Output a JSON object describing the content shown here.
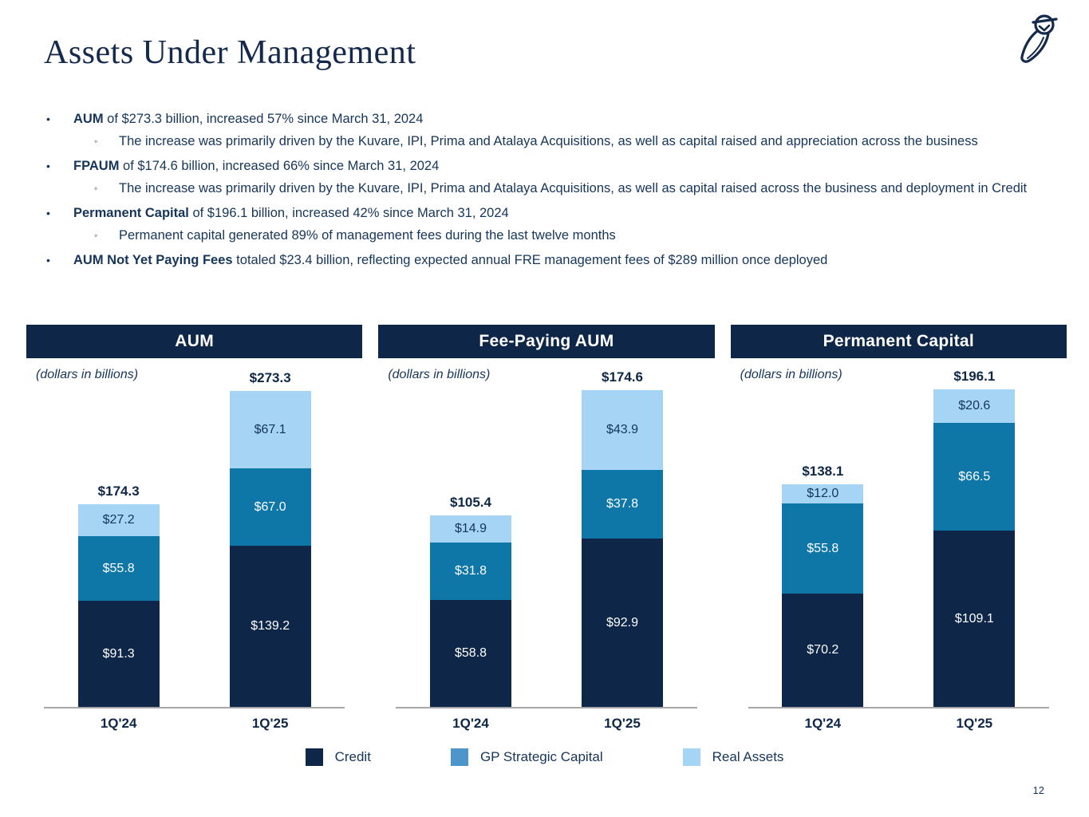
{
  "page": {
    "title": "Assets Under Management",
    "page_number": "12"
  },
  "markers": {
    "level1": "•",
    "level2": "◦"
  },
  "bullets": [
    {
      "bold": "AUM",
      "rest": " of $273.3 billion, increased 57% since March 31, 2024",
      "sub": "The increase was primarily driven by the Kuvare, IPI, Prima and Atalaya Acquisitions, as well as capital raised and appreciation across the business"
    },
    {
      "bold": "FPAUM",
      "rest": " of $174.6 billion, increased 66% since March 31, 2024",
      "sub": "The increase was primarily driven by the Kuvare, IPI, Prima and Atalaya Acquisitions, as well as capital raised across the business and deployment in Credit"
    },
    {
      "bold": "Permanent Capital",
      "rest": " of $196.1 billion, increased 42% since March 31, 2024",
      "sub": "Permanent capital generated 89% of management fees during the last twelve months"
    },
    {
      "bold": "AUM Not Yet Paying Fees",
      "rest": " totaled $23.4 billion, reflecting expected annual FRE management fees of $289 million once deployed",
      "sub": null
    }
  ],
  "chart_data": [
    {
      "type": "bar",
      "stacked": true,
      "title": "AUM",
      "subtitle": "(dollars in billions)",
      "categories": [
        "1Q'24",
        "1Q'25"
      ],
      "series": [
        {
          "name": "Credit",
          "values": [
            91.3,
            139.2
          ],
          "color": "#0E2647",
          "label_color": "#FFFFFF"
        },
        {
          "name": "GP Strategic Capital",
          "values": [
            55.8,
            67.0
          ],
          "color": "#0F76A8",
          "label_color": "#FFFFFF"
        },
        {
          "name": "Real Assets",
          "values": [
            27.2,
            67.1
          ],
          "color": "#A5D4F5",
          "label_color": "#16355A"
        }
      ],
      "totals_display": [
        "$174.3",
        "$273.3"
      ],
      "legend_position": "bottom",
      "grid": false
    },
    {
      "type": "bar",
      "stacked": true,
      "title": "Fee-Paying AUM",
      "subtitle": "(dollars in billions)",
      "categories": [
        "1Q'24",
        "1Q'25"
      ],
      "series": [
        {
          "name": "Credit",
          "values": [
            58.8,
            92.9
          ],
          "color": "#0E2647",
          "label_color": "#FFFFFF"
        },
        {
          "name": "GP Strategic Capital",
          "values": [
            31.8,
            37.8
          ],
          "color": "#0F76A8",
          "label_color": "#FFFFFF"
        },
        {
          "name": "Real Assets",
          "values": [
            14.9,
            43.9
          ],
          "color": "#A5D4F5",
          "label_color": "#16355A"
        }
      ],
      "totals_display": [
        "$105.4",
        "$174.6"
      ],
      "legend_position": "bottom",
      "grid": false
    },
    {
      "type": "bar",
      "stacked": true,
      "title": "Permanent Capital",
      "subtitle": "(dollars in billions)",
      "categories": [
        "1Q'24",
        "1Q'25"
      ],
      "series": [
        {
          "name": "Credit",
          "values": [
            70.2,
            109.1
          ],
          "color": "#0E2647",
          "label_color": "#FFFFFF"
        },
        {
          "name": "GP Strategic Capital",
          "values": [
            55.8,
            66.5
          ],
          "color": "#0F76A8",
          "label_color": "#FFFFFF"
        },
        {
          "name": "Real Assets",
          "values": [
            12.0,
            20.6
          ],
          "color": "#A5D4F5",
          "label_color": "#16355A"
        }
      ],
      "totals_display": [
        "$138.1",
        "$196.1"
      ],
      "legend_position": "bottom",
      "grid": false
    }
  ],
  "legend": {
    "items": [
      {
        "label": "Credit",
        "color": "#0E2647"
      },
      {
        "label": "GP Strategic Capital",
        "color": "#4E95CC"
      },
      {
        "label": "Real Assets",
        "color": "#A5D4F5"
      }
    ]
  },
  "colors": {
    "navy": "#0E2647",
    "text_navy": "#16355A",
    "mid_blue": "#0F76A8",
    "light_blue": "#A5D4F5",
    "axis_gray": "#A6A6A6"
  }
}
